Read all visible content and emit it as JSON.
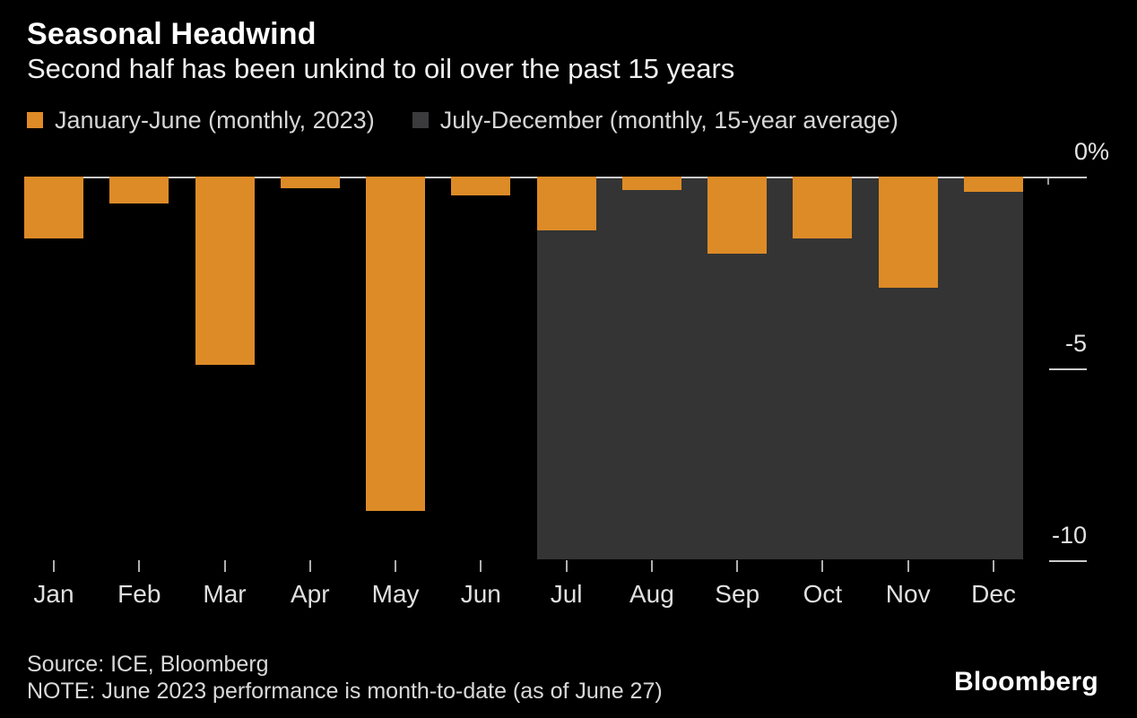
{
  "header": {
    "title": "Seasonal Headwind",
    "subtitle": "Second half has been unkind to oil over the past 15 years"
  },
  "legend": [
    {
      "label": "January-June (monthly, 2023)",
      "color": "#dd8b27"
    },
    {
      "label": "July-December (monthly, 15-year average)",
      "color": "#3b3b3d"
    }
  ],
  "chart_data": {
    "type": "bar",
    "title": "Seasonal Headwind",
    "subtitle": "Second half has been unkind to oil over the past 15 years",
    "unit": "percent",
    "categories": [
      "Jan",
      "Feb",
      "Mar",
      "Apr",
      "May",
      "Jun",
      "Jul",
      "Aug",
      "Sep",
      "Oct",
      "Nov",
      "Dec"
    ],
    "series": [
      {
        "name": "January-June (monthly, 2023)",
        "color": "#dd8b27",
        "values": [
          -1.6,
          -0.7,
          -4.9,
          -0.3,
          -8.7,
          -0.5,
          null,
          null,
          null,
          null,
          null,
          null
        ]
      },
      {
        "name": "July-December (monthly, 15-year average)",
        "color": "#dd8b27",
        "values": [
          null,
          null,
          null,
          null,
          null,
          null,
          -1.4,
          -0.35,
          -2.0,
          -1.6,
          -2.9,
          -0.4
        ]
      }
    ],
    "highlight_band": {
      "from": "Jul",
      "to": "Dec",
      "color": "#343434",
      "represents": "July-December (monthly, 15-year average)"
    },
    "y_axis": {
      "side": "right",
      "range": [
        -10,
        0
      ],
      "ticks": [
        {
          "label": "0%",
          "value": 0
        },
        {
          "label": "-5",
          "value": -5
        },
        {
          "label": "-10",
          "value": -10
        }
      ]
    },
    "grid": false,
    "legend_position": "top"
  },
  "footer": {
    "source": "Source: ICE, Bloomberg",
    "note": "NOTE: June 2023 performance is month-to-date (as of June 27)",
    "brand": "Bloomberg"
  }
}
